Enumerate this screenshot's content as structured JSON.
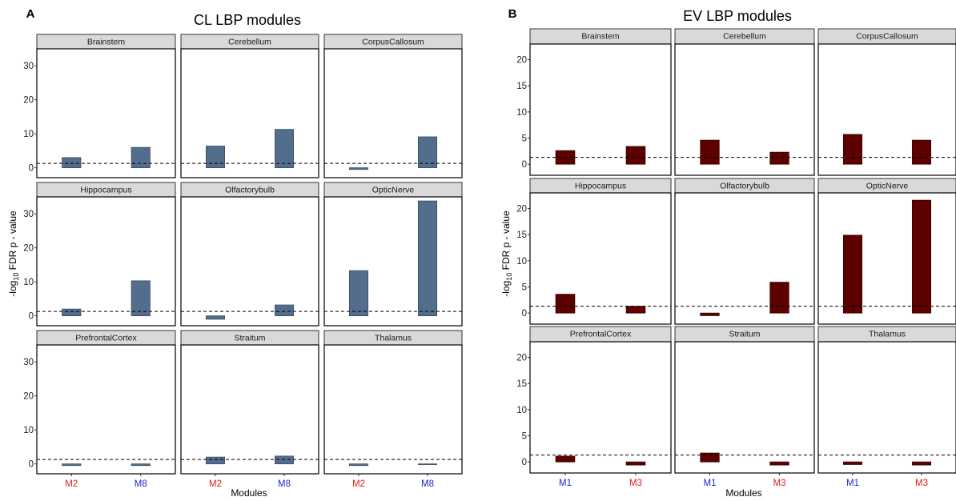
{
  "chart_data": [
    {
      "type": "bar",
      "panel_letter": "A",
      "title": "CL LBP modules",
      "xlabel": "Modules",
      "ylabel": "-log10 FDR p-value",
      "ylabel_parts": {
        "prefix": "-log",
        "subscript": "10",
        "suffix": " FDR p - value"
      },
      "categories": [
        "M2",
        "M8"
      ],
      "category_colors": [
        "#e41a1c",
        "#1f1fd1"
      ],
      "bar_color": "#536e8c",
      "bar_outline": "#3a4d63",
      "ylim": [
        -1.5,
        35
      ],
      "yticks": [
        0,
        10,
        20,
        30
      ],
      "threshold": 1.3,
      "facet_columns": 3,
      "facets": [
        {
          "name": "Brainstem",
          "values": [
            3.0,
            6.0
          ]
        },
        {
          "name": "Cerebellum",
          "values": [
            6.4,
            11.3
          ]
        },
        {
          "name": "CorpusCallosum",
          "values": [
            -0.5,
            9.1
          ]
        },
        {
          "name": "Hippocampus",
          "values": [
            2.0,
            10.3
          ]
        },
        {
          "name": "Olfactorybulb",
          "values": [
            -1.0,
            3.2
          ]
        },
        {
          "name": "OpticNerve",
          "values": [
            13.3,
            33.8
          ]
        },
        {
          "name": "PrefrontalCortex",
          "values": [
            -0.5,
            -0.5
          ]
        },
        {
          "name": "Straitum",
          "values": [
            2.0,
            2.3
          ]
        },
        {
          "name": "Thalamus",
          "values": [
            -0.5,
            -0.2
          ]
        }
      ]
    },
    {
      "type": "bar",
      "panel_letter": "B",
      "title": "EV LBP modules",
      "xlabel": "Modules",
      "ylabel": "-log10 FDR p-value",
      "ylabel_parts": {
        "prefix": "-log",
        "subscript": "10",
        "suffix": " FDR p - value"
      },
      "categories": [
        "M1",
        "M3"
      ],
      "category_colors": [
        "#1f1fd1",
        "#e41a1c"
      ],
      "bar_color": "#5c0000",
      "bar_outline": "#3a0000",
      "ylim": [
        -1.2,
        23
      ],
      "yticks": [
        0,
        5,
        10,
        15,
        20
      ],
      "threshold": 1.3,
      "facet_columns": 3,
      "facets": [
        {
          "name": "Brainstem",
          "values": [
            2.6,
            3.4
          ]
        },
        {
          "name": "Cerebellum",
          "values": [
            4.6,
            2.3
          ]
        },
        {
          "name": "CorpusCallosum",
          "values": [
            5.7,
            4.6
          ]
        },
        {
          "name": "Hippocampus",
          "values": [
            3.6,
            1.3
          ]
        },
        {
          "name": "Olfactorybulb",
          "values": [
            -0.5,
            5.9
          ]
        },
        {
          "name": "OpticNerve",
          "values": [
            14.9,
            21.6
          ]
        },
        {
          "name": "PrefrontalCortex",
          "values": [
            1.1,
            -0.6
          ]
        },
        {
          "name": "Straitum",
          "values": [
            1.7,
            -0.6
          ]
        },
        {
          "name": "Thalamus",
          "values": [
            -0.5,
            -0.6
          ]
        }
      ]
    }
  ]
}
